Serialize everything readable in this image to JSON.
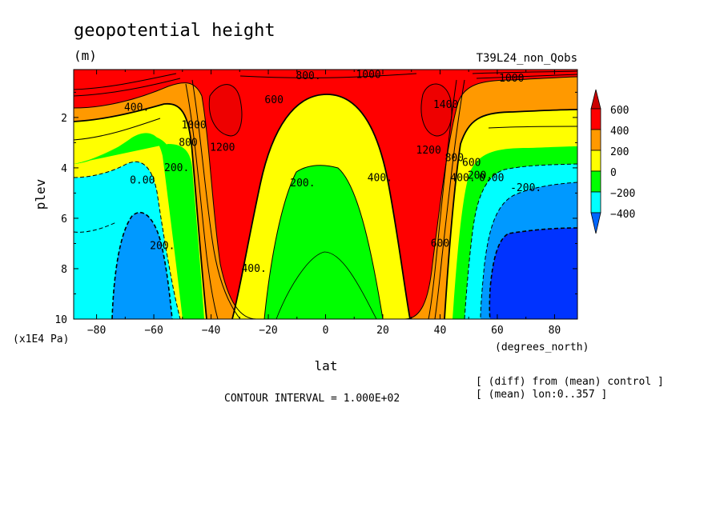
{
  "chart_data": {
    "type": "heatmap",
    "title": "geopotential height",
    "units": "(m)",
    "run_label": "T39L24_non_Qobs",
    "xlabel": "lat",
    "x_units": "(degrees_north)",
    "ylabel": "plev",
    "y_units": "(x1E4 Pa)",
    "xlim": [
      -88,
      88
    ],
    "ylim": [
      10,
      0.1
    ],
    "x_ticks": [
      {
        "v": -80,
        "label": "-80"
      },
      {
        "v": -60,
        "label": "-60"
      },
      {
        "v": -40,
        "label": "-40"
      },
      {
        "v": -20,
        "label": "-20"
      },
      {
        "v": 0,
        "label": "0"
      },
      {
        "v": 20,
        "label": "20"
      },
      {
        "v": 40,
        "label": "40"
      },
      {
        "v": 60,
        "label": "60"
      },
      {
        "v": 80,
        "label": "80"
      }
    ],
    "y_ticks": [
      {
        "v": 2,
        "label": "2"
      },
      {
        "v": 4,
        "label": "4"
      },
      {
        "v": 6,
        "label": "6"
      },
      {
        "v": 8,
        "label": "8"
      },
      {
        "v": 10,
        "label": "10"
      }
    ],
    "contour_interval_text": "CONTOUR INTERVAL = 1.000E+02",
    "notes": [
      "[ (diff) from (mean) control ]",
      "[ (mean) lon:0..357 ]"
    ],
    "colorbar": {
      "labels": [
        "600",
        "400",
        "200",
        "0",
        "−200",
        "−400"
      ],
      "colors": [
        "#ff0000",
        "#ff9900",
        "#ffff00",
        "#00ff00",
        "#00ffff",
        "#0099ff",
        "#0033ff",
        "#cc0000"
      ]
    },
    "contour_labels": [
      {
        "text": "1000",
        "x": 15,
        "y": 0.3
      },
      {
        "text": "800.",
        "x": -6,
        "y": 0.35
      },
      {
        "text": "1000",
        "x": 65,
        "y": 0.45
      },
      {
        "text": "400.",
        "x": -66,
        "y": 1.6
      },
      {
        "text": "600",
        "x": -18,
        "y": 1.3
      },
      {
        "text": "1000",
        "x": -46,
        "y": 2.3
      },
      {
        "text": "800",
        "x": -48,
        "y": 3.0
      },
      {
        "text": "1200",
        "x": -36,
        "y": 3.2
      },
      {
        "text": "1400",
        "x": 42,
        "y": 1.5
      },
      {
        "text": "1200",
        "x": 36,
        "y": 3.3
      },
      {
        "text": "800",
        "x": 45,
        "y": 3.6
      },
      {
        "text": "600",
        "x": 51,
        "y": 3.8
      },
      {
        "text": "200.",
        "x": -52,
        "y": 4.0
      },
      {
        "text": "0.00",
        "x": -64,
        "y": 4.5
      },
      {
        "text": "200.",
        "x": -8,
        "y": 4.6
      },
      {
        "text": "400.",
        "x": 19,
        "y": 4.4
      },
      {
        "text": "400.",
        "x": 48,
        "y": 4.4
      },
      {
        "text": "200.",
        "x": 54,
        "y": 4.3
      },
      {
        "text": "0.00",
        "x": 58,
        "y": 4.4
      },
      {
        "text": "-200.",
        "x": 70,
        "y": 4.8
      },
      {
        "text": "200.",
        "x": -57,
        "y": 7.1
      },
      {
        "text": "600",
        "x": 40,
        "y": 7.0
      },
      {
        "text": "400.",
        "x": -25,
        "y": 8.0
      }
    ],
    "bands_description": "Zonal-mean geopotential height difference: positive maxima near 35S and 35N at upper levels, cyan/blue negatives at high latitudes, green/yellow dome over equator."
  }
}
